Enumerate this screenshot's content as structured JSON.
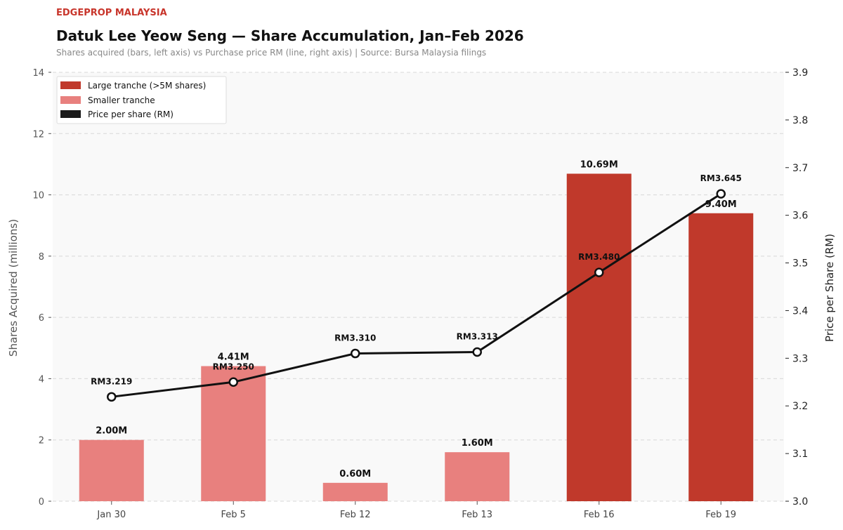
{
  "header": {
    "brand": "EDGEPROP MALAYSIA",
    "title": "Datuk Lee Yeow Seng — Share Accumulation, Jan–Feb 2026",
    "subtitle": "Shares acquired (bars, left axis)  vs  Purchase price RM (line, right axis)  |  Source: Bursa Malaysia filings"
  },
  "colors": {
    "brand": "#c8352b",
    "large": "#c0392b",
    "small": "#e8807e",
    "line": "#111111"
  },
  "chart_data": {
    "type": "bar+line",
    "categories": [
      "Jan 30",
      "Feb 5",
      "Feb 12",
      "Feb 13",
      "Feb 16",
      "Feb 19"
    ],
    "shares_millions": [
      2.0,
      4.41,
      0.6,
      1.6,
      10.69,
      9.4
    ],
    "share_labels": [
      "2.00M",
      "4.41M",
      "0.60M",
      "1.60M",
      "10.69M",
      "9.40M"
    ],
    "price_rm": [
      3.219,
      3.25,
      3.31,
      3.313,
      3.48,
      3.645
    ],
    "price_labels": [
      "RM3.219",
      "RM3.250",
      "RM3.310",
      "RM3.313",
      "RM3.480",
      "RM3.645"
    ],
    "tranche": [
      "small",
      "small",
      "small",
      "small",
      "large",
      "large"
    ],
    "ylabel_left": "Shares Acquired (millions)",
    "ylabel_right": "Price per Share (RM)",
    "ylim_left": [
      0,
      14
    ],
    "yticks_left": [
      "0",
      "2",
      "4",
      "6",
      "8",
      "10",
      "12",
      "14"
    ],
    "ylim_right": [
      3.0,
      3.9
    ],
    "yticks_right": [
      "3.0",
      "3.1",
      "3.2",
      "3.3",
      "3.4",
      "3.5",
      "3.6",
      "3.7",
      "3.8",
      "3.9"
    ],
    "grid": "horizontal dashed",
    "legend_position": "top-left",
    "legend": [
      "Large tranche (>5M shares)",
      "Smaller tranche",
      "Price per share (RM)"
    ]
  }
}
